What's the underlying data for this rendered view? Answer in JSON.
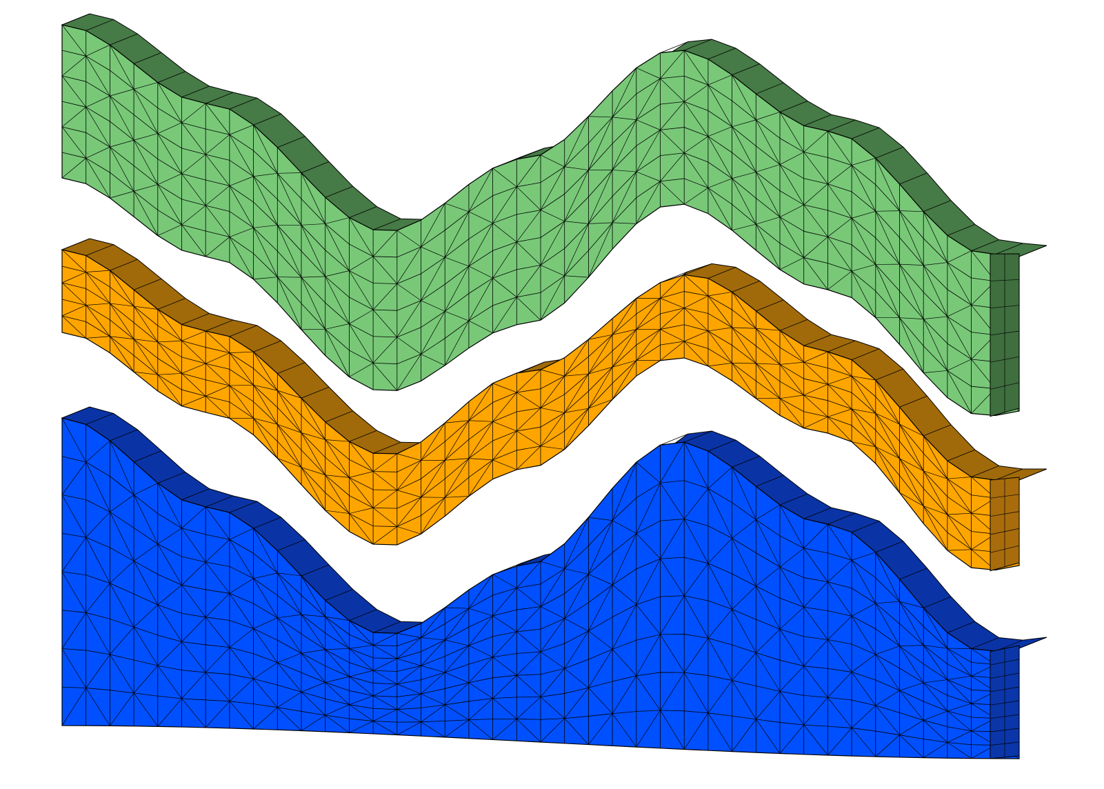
{
  "figure": {
    "background": "#ffffff",
    "mesh_line_color": "#000000"
  },
  "layers": [
    {
      "id": "top",
      "front_color": "#78c878",
      "top_color": "#467a46",
      "side_color": "#3f6e3f",
      "underside_color": "#1e3d1e"
    },
    {
      "id": "middle",
      "front_color": "#ffa500",
      "top_color": "#a06a0a",
      "side_color": "#a86c0c",
      "underside_color": "#4a3000"
    },
    {
      "id": "bottom",
      "front_color": "#0050ff",
      "top_color": "#0a34a6",
      "side_color": "#0a36aa",
      "underside_color": "#0a2a80"
    }
  ]
}
